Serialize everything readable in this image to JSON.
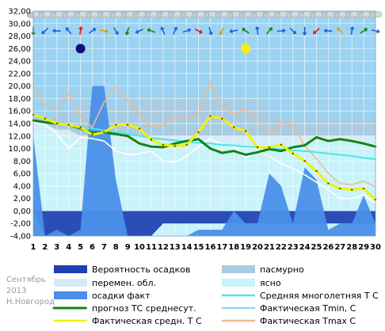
{
  "caption": [
    "Сентябрь",
    "2013",
    "Н.Новгород"
  ],
  "chart_data": {
    "type": "area",
    "month": "Сентябрь",
    "year": "2013",
    "city": "Н.Новгород",
    "x": [
      1,
      2,
      3,
      4,
      5,
      6,
      7,
      8,
      9,
      10,
      11,
      12,
      13,
      14,
      15,
      16,
      17,
      18,
      19,
      20,
      21,
      22,
      23,
      24,
      25,
      26,
      27,
      28,
      29,
      30
    ],
    "ylim": [
      -4,
      32
    ],
    "yticks": [
      "-4,00",
      "-2,00",
      "0,00",
      "2,00",
      "4,00",
      "6,00",
      "8,00",
      "10,00",
      "12,00",
      "14,00",
      "16,00",
      "18,00",
      "20,00",
      "22,00",
      "24,00",
      "26,00",
      "28,00",
      "30,00",
      "32,00"
    ],
    "grid": true,
    "legend_position": "bottom",
    "colors": {
      "clear": "#c8f3fb",
      "overcast": "#a8cce2",
      "variable": "#d6ebf6",
      "prob_fill": "#1c3fb2",
      "precip_fill": "#4a8fe8",
      "avg": "#49e6e6",
      "tmin": "#9ad7f1",
      "tmax": "#f4b891",
      "forecast": "#118211",
      "tact": "#f2f200",
      "background": "#9cd3f2"
    },
    "series": [
      {
        "name": "Вероятность осадков",
        "values": [
          0,
          -4,
          -4,
          -4,
          -4,
          -4,
          -4,
          -4,
          -4,
          -4,
          -4,
          -2,
          -2,
          -2,
          -2,
          -2,
          -2,
          -2,
          -2,
          -2,
          -2,
          -2,
          -2,
          -2,
          -2,
          -2,
          -2,
          -2,
          -2,
          -2
        ],
        "baseline": 0
      },
      {
        "name": "пасмурно",
        "values": [
          15,
          15,
          16,
          16,
          17,
          17,
          17,
          17,
          17,
          18,
          18,
          18,
          18,
          18,
          18,
          18,
          18,
          18,
          18,
          18,
          16,
          15,
          15,
          15,
          15,
          15,
          15,
          15,
          15,
          15
        ]
      },
      {
        "name": "перемен. обл.",
        "values": [
          14,
          14,
          13,
          13,
          12,
          12,
          12,
          12,
          12,
          12,
          12,
          12,
          12,
          12,
          12,
          12,
          12,
          12,
          12,
          12,
          12,
          12,
          12,
          12,
          12,
          12,
          12,
          12,
          12,
          12
        ]
      },
      {
        "name": "ясно",
        "values": [
          13,
          13,
          12,
          12,
          11,
          11,
          11,
          11,
          11,
          11,
          11,
          11,
          11,
          11,
          11,
          11,
          11,
          11,
          11,
          11,
          11,
          11,
          11,
          11,
          11,
          11,
          11,
          11,
          11,
          11
        ]
      },
      {
        "name": "осадки факт",
        "values": [
          12,
          -4,
          -3,
          -4,
          -3,
          20,
          20,
          5,
          -4,
          -4,
          -4,
          -4,
          -4,
          -4,
          -3,
          -3,
          -3,
          0,
          -2,
          -2,
          6,
          4,
          -2,
          7,
          5,
          -3,
          -2,
          -2,
          2.5,
          -2
        ]
      },
      {
        "name": "Средняя многолетняя Т С",
        "values": [
          14.6,
          14.3,
          14.0,
          13.8,
          13.5,
          13.2,
          12.9,
          12.6,
          12.3,
          12.0,
          11.7,
          11.5,
          11.3,
          11.1,
          10.9,
          10.8,
          10.6,
          10.5,
          10.3,
          10.2,
          10.0,
          9.9,
          9.7,
          9.6,
          9.4,
          9.2,
          9.0,
          8.8,
          8.5,
          8.3
        ]
      },
      {
        "name": "прогноз ТС среднесут.",
        "values": [
          14.5,
          14.2,
          14.0,
          13.8,
          13.2,
          12.5,
          12.6,
          12.3,
          12.0,
          10.8,
          10.3,
          10.2,
          10.8,
          11.2,
          11.5,
          10.0,
          9.3,
          9.6,
          9.0,
          9.4,
          9.9,
          9.6,
          10.2,
          10.5,
          11.8,
          11.2,
          11.5,
          11.2,
          10.8,
          10.3
        ]
      },
      {
        "name": "Фактическая Tmin, С",
        "values": [
          14.2,
          13.8,
          12.4,
          10.0,
          11.8,
          11.6,
          11.2,
          9.6,
          9.0,
          9.2,
          9.6,
          8.0,
          7.8,
          8.8,
          10.3,
          11.6,
          10.6,
          10.4,
          8.6,
          9.6,
          8.8,
          7.6,
          6.8,
          5.8,
          4.6,
          3.4,
          2.0,
          2.0,
          2.6,
          1.2
        ]
      },
      {
        "name": "Фактическая средн. Т С",
        "values": [
          15.4,
          14.8,
          14.0,
          13.8,
          13.4,
          12.2,
          12.6,
          13.8,
          13.8,
          13.2,
          11.4,
          10.6,
          10.4,
          10.6,
          12.6,
          15.2,
          14.8,
          13.4,
          12.8,
          10.2,
          10.2,
          10.6,
          9.2,
          8.0,
          6.4,
          4.4,
          3.6,
          3.4,
          3.6,
          1.8
        ]
      },
      {
        "name": "Фактическая Tmax C",
        "values": [
          20.0,
          17.0,
          16.4,
          18.8,
          15.2,
          13.4,
          17.4,
          19.8,
          17.8,
          15.6,
          13.4,
          13.8,
          14.8,
          15.0,
          15.4,
          20.6,
          16.6,
          15.6,
          16.2,
          14.6,
          12.2,
          14.2,
          13.8,
          10.4,
          8.4,
          6.0,
          4.4,
          4.2,
          4.8,
          3.8
        ]
      }
    ],
    "markers": [
      {
        "name": "moon-marker",
        "x": 5,
        "y": 26
      },
      {
        "name": "sun-marker",
        "x": 19,
        "y": 26
      }
    ]
  },
  "legend": [
    {
      "label": "Вероятность осадков",
      "kind": "box",
      "color": "#1c3fb2",
      "col": 0,
      "row": 0
    },
    {
      "label": "пасмурно",
      "kind": "box",
      "color": "#a8cce2",
      "col": 1,
      "row": 0
    },
    {
      "label": "перемен. обл.",
      "kind": "box",
      "color": "#d6ebf6",
      "col": 0,
      "row": 1
    },
    {
      "label": "ясно",
      "kind": "box",
      "color": "#c8f3fb",
      "col": 1,
      "row": 1
    },
    {
      "label": "осадки факт",
      "kind": "box",
      "color": "#4a8fe8",
      "col": 0,
      "row": 2
    },
    {
      "label": "Средняя многолетняя Т С",
      "kind": "line",
      "color": "#49e6e6",
      "col": 1,
      "row": 2
    },
    {
      "label": "прогноз ТС среднесут.",
      "kind": "dots",
      "color": "#118211",
      "col": 0,
      "row": 3
    },
    {
      "label": "Фактическая Tmin, С",
      "kind": "line",
      "color": "#9ad7f1",
      "col": 1,
      "row": 3
    },
    {
      "label": "Фактическая средн. Т С",
      "kind": "line",
      "color": "#f2f200",
      "col": 0,
      "row": 4
    },
    {
      "label": "Фактическая Tmax C",
      "kind": "line",
      "color": "#f4b891",
      "col": 1,
      "row": 4
    }
  ],
  "icons": [
    "cloud-icon",
    "wind-arrow-icon"
  ]
}
